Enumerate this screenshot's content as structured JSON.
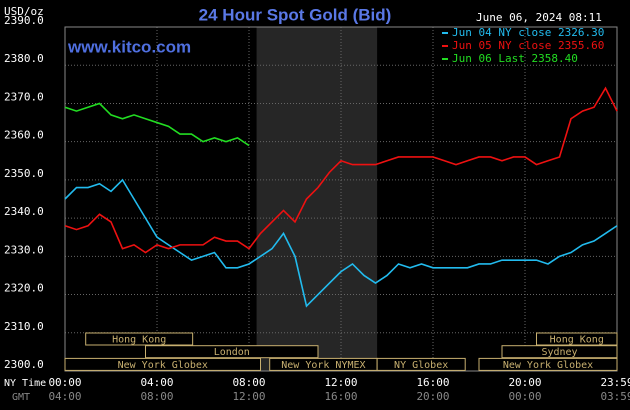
{
  "chart_data": {
    "type": "line",
    "title": "24 Hour Spot Gold (Bid)",
    "ylabel": "USD/oz",
    "timestamp": "June 06, 2024 08:11",
    "watermark": "www.kitco.com",
    "xlabel": "NY Time",
    "x2label": "GMT",
    "x": [
      0,
      0.5,
      1,
      1.5,
      2,
      2.5,
      3,
      3.5,
      4,
      4.5,
      5,
      5.5,
      6,
      6.5,
      7,
      7.5,
      8,
      8.5,
      9,
      9.5,
      10,
      10.5,
      11,
      11.5,
      12,
      12.5,
      13,
      13.5,
      14,
      14.5,
      15,
      15.5,
      16,
      16.5,
      17,
      17.5,
      18,
      18.5,
      19,
      19.5,
      20,
      20.5,
      21,
      21.5,
      22,
      22.5,
      23,
      23.5,
      24
    ],
    "series": [
      {
        "name": "Jun 04 NY close 2326.30",
        "color": "#22bbee",
        "values": [
          2345,
          2348,
          2348,
          2349,
          2347,
          2350,
          2345,
          2340,
          2335,
          2333,
          2331,
          2329,
          2330,
          2331,
          2327,
          2327,
          2328,
          2330,
          2332,
          2336,
          2330,
          2317,
          2320,
          2323,
          2326,
          2328,
          2325,
          2323,
          2325,
          2328,
          2327,
          2328,
          2327,
          2327,
          2327,
          2327,
          2328,
          2328,
          2329,
          2329,
          2329,
          2329,
          2328,
          2330,
          2331,
          2333,
          2334,
          2336,
          2338
        ]
      },
      {
        "name": "Jun 05 NY close 2355.60",
        "color": "#ee1111",
        "values": [
          2338,
          2337,
          2338,
          2341,
          2339,
          2332,
          2333,
          2331,
          2333,
          2332,
          2333,
          2333,
          2333,
          2335,
          2334,
          2334,
          2332,
          2336,
          2339,
          2342,
          2339,
          2345,
          2348,
          2352,
          2355,
          2354,
          2354,
          2354,
          2355,
          2356,
          2356,
          2356,
          2356,
          2355,
          2354,
          2355,
          2356,
          2356,
          2355,
          2356,
          2356,
          2354,
          2355,
          2356,
          2366,
          2368,
          2369,
          2374,
          2368
        ]
      },
      {
        "name": "Jun 06 Last 2358.40",
        "color": "#22dd22",
        "values": [
          2369,
          2368,
          2369,
          2370,
          2367,
          2366,
          2367,
          2366,
          2365,
          2364,
          2362,
          2362,
          2360,
          2361,
          2360,
          2361,
          2359,
          null,
          null,
          null,
          null,
          null,
          null,
          null,
          null,
          null,
          null,
          null,
          null,
          null,
          null,
          null,
          null,
          null,
          null,
          null,
          null,
          null,
          null,
          null,
          null,
          null,
          null,
          null,
          null,
          null,
          null,
          null,
          null
        ]
      }
    ],
    "xlim": [
      0,
      24
    ],
    "ylim": [
      2300,
      2390
    ],
    "yticks": [
      {
        "value": 2300,
        "label": "2300.0"
      },
      {
        "value": 2310,
        "label": "2310.0"
      },
      {
        "value": 2320,
        "label": "2320.0"
      },
      {
        "value": 2330,
        "label": "2330.0"
      },
      {
        "value": 2340,
        "label": "2340.0"
      },
      {
        "value": 2350,
        "label": "2350.0"
      },
      {
        "value": 2360,
        "label": "2360.0"
      },
      {
        "value": 2370,
        "label": "2370.0"
      },
      {
        "value": 2380,
        "label": "2380.0"
      },
      {
        "value": 2390,
        "label": "2390.0"
      }
    ],
    "xticks": [
      {
        "value": 0,
        "label": "00:00"
      },
      {
        "value": 4,
        "label": "04:00"
      },
      {
        "value": 8,
        "label": "08:00"
      },
      {
        "value": 12,
        "label": "12:00"
      },
      {
        "value": 16,
        "label": "16:00"
      },
      {
        "value": 20,
        "label": "20:00"
      },
      {
        "value": 24,
        "label": "23:59"
      }
    ],
    "x2ticks": [
      {
        "value": 0,
        "label": "04:00"
      },
      {
        "value": 4,
        "label": "08:00"
      },
      {
        "value": 8,
        "label": "12:00"
      },
      {
        "value": 12,
        "label": "16:00"
      },
      {
        "value": 16,
        "label": "20:00"
      },
      {
        "value": 20,
        "label": "00:00"
      },
      {
        "value": 24,
        "label": "03:59"
      }
    ],
    "highlight_range": [
      8.33,
      13.57
    ],
    "sessions": [
      {
        "label": "Hong Kong",
        "start": 0.9,
        "end": 5.55
      },
      {
        "label": "London",
        "start": 3.5,
        "end": 11
      },
      {
        "label": "New York Globex",
        "start": 0,
        "end": 8.5
      },
      {
        "label": "New York NYMEX",
        "start": 8.9,
        "end": 13.57
      },
      {
        "label": "NY Globex",
        "start": 13.57,
        "end": 17.4
      },
      {
        "label": "Hong Kong",
        "start": 20.5,
        "end": 24
      },
      {
        "label": "Sydney",
        "start": 19,
        "end": 24
      },
      {
        "label": "New York Globex",
        "start": 18,
        "end": 24
      }
    ],
    "grid": true
  }
}
